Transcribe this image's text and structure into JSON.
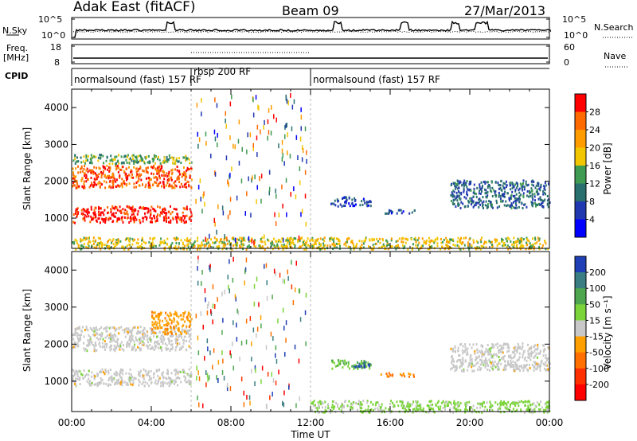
{
  "header": {
    "station": "Adak East (fitACF)",
    "beam": "Beam 09",
    "date": "27/Mar/2013"
  },
  "params": {
    "nsky_label": "N.Sky",
    "nsky_ticks": [
      "10^5",
      "10^0"
    ],
    "nsearch_label": "N.Search",
    "nsearch_ticks": [
      "10^5",
      "10^0"
    ],
    "freq_label_1": "Freq.",
    "freq_label_2": "[MHz]",
    "freq_ticks": [
      "18",
      "8"
    ],
    "nave_label": "Nave",
    "nave_ticks": [
      "60",
      "0"
    ],
    "cpid_label": "CPID",
    "modes": [
      {
        "name": "normalsound (fast) 157 RF",
        "start": 0,
        "end": 6
      },
      {
        "name": "rbsp 200 RF",
        "start": 6,
        "end": 12
      },
      {
        "name": "normalsound (fast) 157 RF",
        "start": 12,
        "end": 24
      }
    ]
  },
  "colorbars": {
    "power": {
      "label": "Power [dB]",
      "ticks": [
        "28",
        "24",
        "20",
        "16",
        "12",
        "8",
        "4"
      ],
      "colors": [
        "#ff0000",
        "#ff6a00",
        "#ff9d00",
        "#f2c600",
        "#3f9a52",
        "#2a6f70",
        "#2038b0",
        "#0000ff"
      ]
    },
    "velocity": {
      "label": "Velocity [m s⁻¹]",
      "ticks": [
        "200",
        "100",
        "50",
        "15",
        "-15",
        "-50",
        "-100",
        "-200"
      ],
      "colors": [
        "#1e3fb5",
        "#3a7e84",
        "#4ea74e",
        "#7bd43a",
        "#c8c8c8",
        "#ffa000",
        "#ff7000",
        "#ff3000",
        "#ff0000"
      ]
    }
  },
  "axes": {
    "ylabel": "Slant Range [km]",
    "xlabel": "Time UT",
    "xticks": [
      "00:00",
      "04:00",
      "08:00",
      "12:00",
      "16:00",
      "20:00",
      "00:00"
    ],
    "yticks": [
      "1000",
      "2000",
      "3000",
      "4000"
    ]
  },
  "chart_data": [
    {
      "type": "heatmap",
      "title": "Adak East (fitACF) Beam 09 27/Mar/2013",
      "quantity": "Power",
      "unit": "dB",
      "xlabel": "Time UT",
      "ylabel": "Slant Range [km]",
      "xlim": [
        0,
        24
      ],
      "ylim": [
        180,
        4500
      ],
      "clim": [
        0,
        32
      ],
      "regions": [
        {
          "t_start": 0,
          "t_end": 6,
          "r_min": 900,
          "r_max": 1350,
          "value": 30
        },
        {
          "t_start": 0,
          "t_end": 6,
          "r_min": 1850,
          "r_max": 2450,
          "value": 27
        },
        {
          "t_start": 0,
          "t_end": 6,
          "r_min": 2500,
          "r_max": 2750,
          "value": 14
        },
        {
          "t_start": 13,
          "t_end": 15,
          "r_min": 1350,
          "r_max": 1600,
          "value": 6
        },
        {
          "t_start": 15.5,
          "t_end": 17.2,
          "r_min": 1150,
          "r_max": 1250,
          "value": 7
        },
        {
          "t_start": 19,
          "t_end": 24,
          "r_min": 1300,
          "r_max": 2050,
          "value": 9
        },
        {
          "t_start": 0,
          "t_end": 24,
          "r_min": 180,
          "r_max": 500,
          "value": 18
        }
      ]
    },
    {
      "type": "heatmap",
      "title": "Adak East (fitACF) Beam 09 27/Mar/2013",
      "quantity": "Velocity",
      "unit": "m s^-1",
      "xlabel": "Time UT",
      "ylabel": "Slant Range [km]",
      "xlim": [
        0,
        24
      ],
      "ylim": [
        180,
        4500
      ],
      "clim": [
        -250,
        250
      ],
      "regions": [
        {
          "t_start": 0,
          "t_end": 6,
          "r_min": 900,
          "r_max": 1350,
          "value": 0
        },
        {
          "t_start": 0,
          "t_end": 6,
          "r_min": 1850,
          "r_max": 2500,
          "value": 0
        },
        {
          "t_start": 4,
          "t_end": 6,
          "r_min": 2300,
          "r_max": 2900,
          "value": -60
        },
        {
          "t_start": 13,
          "t_end": 15,
          "r_min": 1350,
          "r_max": 1600,
          "value": 80
        },
        {
          "t_start": 14,
          "t_end": 15,
          "r_min": 1400,
          "r_max": 1550,
          "value": 200
        },
        {
          "t_start": 15.5,
          "t_end": 17.2,
          "r_min": 1150,
          "r_max": 1250,
          "value": -80
        },
        {
          "t_start": 19,
          "t_end": 24,
          "r_min": 1300,
          "r_max": 2050,
          "value": 0
        },
        {
          "t_start": 12,
          "t_end": 24,
          "r_min": 180,
          "r_max": 500,
          "value": 40
        }
      ]
    }
  ]
}
